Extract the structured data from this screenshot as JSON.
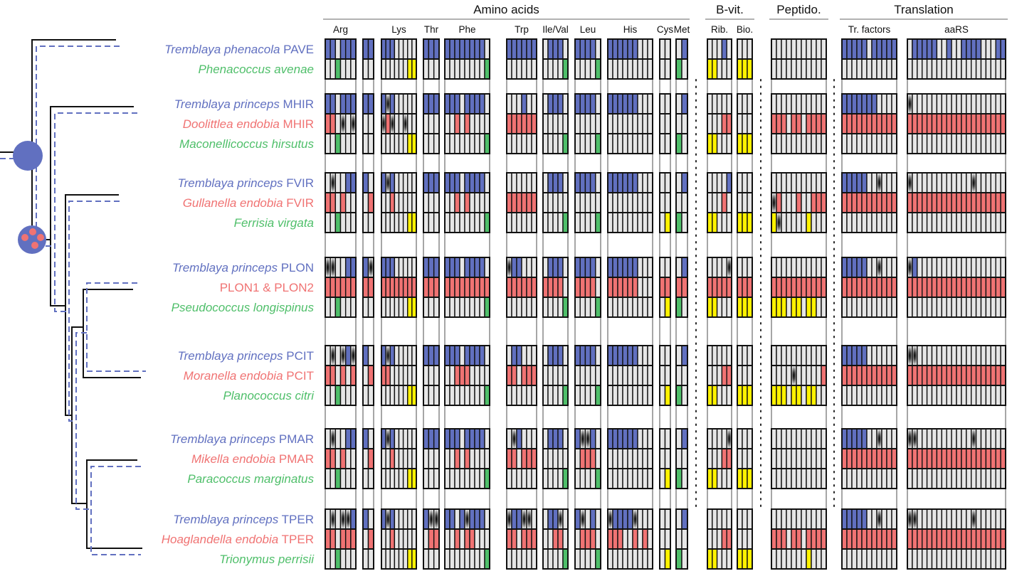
{
  "colors": {
    "tremblaya": "#6170c0",
    "endobia": "#f07373",
    "host": "#4fbf6a",
    "host_yellow": "#fff200",
    "absent": "#e6e6e6",
    "pseudogene": "#000000"
  },
  "legend_codes": {
    "b": "tremblaya gene",
    "r": "endobia gene",
    "g": "host gene",
    "y": "host gene (yellow)",
    ".": "absent",
    "x": "pseudogene"
  },
  "headers": [
    {
      "label": "Amino acids",
      "from": 0,
      "to": 10
    },
    {
      "label": "B-vit.",
      "from": 11,
      "to": 12
    },
    {
      "label": "Peptido.",
      "from": 13,
      "to": 13
    },
    {
      "label": "Translation",
      "from": 14,
      "to": 15
    }
  ],
  "gene_groups": [
    {
      "label": "Arg",
      "n": 6
    },
    {
      "label": "",
      "n": 2
    },
    {
      "label": "Lys",
      "n": 8
    },
    {
      "label": "Thr",
      "n": 3
    },
    {
      "label": "Phe",
      "n": 9
    },
    {
      "label": "Trp",
      "n": 6
    },
    {
      "label": "Ile/Val",
      "n": 5
    },
    {
      "label": "Leu",
      "n": 5
    },
    {
      "label": "His",
      "n": 9
    },
    {
      "label": "Cys",
      "n": 2
    },
    {
      "label": "Met",
      "n": 2
    },
    {
      "label": "Rib.",
      "n": 5
    },
    {
      "label": "Bio.",
      "n": 3
    },
    {
      "label": "",
      "n": 11
    },
    {
      "label": "Tr. factors",
      "n": 11
    },
    {
      "label": "aaRS",
      "n": 20
    }
  ],
  "clades": [
    {
      "rows": [
        {
          "name": "Tremblaya phenacola",
          "suffix": " PAVE",
          "type": "tremblaya",
          "cells": [
            "bb.bbb",
            "bb",
            "bbb.....",
            "bbb",
            "bbbbbbbb.",
            "bbbbbb",
            ".bbb.",
            "bbbb.",
            "bbbbbb...",
            "..",
            ".b",
            "...b.",
            "...",
            "...........",
            "bbbbb.bbbbb",
            ".bbbbb..b..bbbb...bb"
          ]
        },
        {
          "name": "Phenacoccus avenae",
          "suffix": "",
          "type": "host",
          "cells": [
            "..g...",
            "..",
            "......yy",
            "...",
            "........g",
            "......",
            "....g",
            "....g",
            ".........",
            "..",
            "g.",
            "yy...",
            "yyy",
            "...........",
            "...........",
            "...................."
          ]
        }
      ]
    },
    {
      "rows": [
        {
          "name": "Tremblaya princeps",
          "suffix": " MHIR",
          "type": "tremblaya",
          "cells": [
            "bb.bbb",
            "bb",
            "bxb.....",
            "bbb",
            "bbb.bbbb.",
            "...b..",
            ".bbb.",
            "bbbb.",
            "bbbbbb...",
            "..",
            ".b",
            ".....",
            "...",
            "...........",
            "bbbbbbb....",
            "x..................."
          ]
        },
        {
          "name": "Doolittlea endobia",
          "suffix": " MHIR",
          "type": "endobia",
          "cells": [
            "rr.x.x",
            "..",
            "xrx..x..",
            "...",
            "..r.r....",
            "rrrrrr",
            ".....",
            ".....",
            ".........",
            "..",
            "..",
            "...rr",
            "...",
            "rrr.rr.rrrr",
            "rrrrrrrrrrr",
            "rrrrrrrrrrrrrrrrrrrr"
          ]
        },
        {
          "name": "Maconellicoccus hirsutus",
          "suffix": "",
          "type": "host",
          "cells": [
            "..g...",
            "..",
            "......yy",
            "...",
            "........g",
            "......",
            "....g",
            "....g",
            ".........",
            "..",
            "g.",
            "yy...",
            "yyy",
            "...........",
            "...........",
            "...................."
          ]
        }
      ]
    },
    {
      "rows": [
        {
          "name": "Tremblaya princeps",
          "suffix": " FVIR",
          "type": "tremblaya",
          "cells": [
            ".x..bb",
            "b.",
            "bxb.....",
            "bbb",
            "bbb.bbbb.",
            "......",
            ".bbb.",
            "bbbb.",
            "bbbbbb...",
            "..",
            ".b",
            "....b",
            "...",
            "...........",
            "bbbbb..x...",
            "x............x......"
          ]
        },
        {
          "name": "Gullanella endobia",
          "suffix": " FVIR",
          "type": "endobia",
          "cells": [
            "rr.r..",
            ".r",
            "..r.....",
            "...",
            "..r.r....",
            "rrrrrr",
            ".....",
            ".....",
            ".........",
            "..",
            "..",
            "...r.",
            "...",
            "xr...r..rrr",
            "rrrrrrrrrrr",
            "rrrrrrrrrrrrrrrrrrrr"
          ]
        },
        {
          "name": "Ferrisia virgata",
          "suffix": "",
          "type": "host",
          "cells": [
            "..g...",
            "..",
            "......yy",
            "...",
            "........g",
            "......",
            "....g",
            "....g",
            ".........",
            ".y",
            "g.",
            "yy...",
            "yyy",
            "yx.....y...",
            "...........",
            "...................."
          ]
        }
      ]
    },
    {
      "rows": [
        {
          "name": "Tremblaya princeps",
          "suffix": " PLON",
          "type": "tremblaya",
          "cells": [
            "xx..bb",
            "bx",
            "bbb.....",
            "bbb",
            "bbb.bbbb.",
            "xbb...",
            ".bbb.",
            "bbbb.",
            "bbbbbb...",
            "..",
            ".b",
            "....x",
            "...",
            "...........",
            "bbbbb..x...",
            "xb.................."
          ]
        },
        {
          "name": "PLON1 & PLON2",
          "suffix": "",
          "type": "endobia",
          "plain": true,
          "cells": [
            "rrrrrr",
            "rr",
            "rrrrrrrr",
            "rrr",
            "rrrrrrrrr",
            "rrrrrr",
            "rrrr.",
            "rrrr.",
            "rrrrrr...",
            "rr",
            "rr",
            "rrrrr",
            "rrr",
            "rrrrrrrrrrr",
            "rrrrrrrrrrr",
            "rrrrrrrrrrrrrrrrrrrr"
          ]
        },
        {
          "name": "Pseudococcus longispinus",
          "suffix": "",
          "type": "host",
          "cells": [
            "..g...",
            "..",
            "......yy",
            "...",
            "........g",
            "......",
            "....g",
            "....g",
            ".........",
            ".y",
            "g.",
            "yy...",
            "yyy",
            "yyy.yy.yy..",
            "...........",
            "...................."
          ]
        }
      ]
    },
    {
      "rows": [
        {
          "name": "Tremblaya princeps",
          "suffix": " PCIT",
          "type": "tremblaya",
          "cells": [
            ".x.xbx",
            "b.",
            "bxb.....",
            "bbb",
            "bbb.bbbb.",
            ".bb...",
            ".bbb.",
            "bbbb.",
            "bbbbbb...",
            "..",
            ".b",
            ".....",
            "...",
            "...........",
            "bbbbb......",
            "xx.................."
          ]
        },
        {
          "name": "Moranella endobia",
          "suffix": " PCIT",
          "type": "endobia",
          "cells": [
            "rr.r.r",
            ".r",
            "rr......",
            "...",
            "..rrr....",
            "rr.rrr",
            ".....",
            ".....",
            ".........",
            "..",
            "..",
            "...rr",
            "...",
            "....x.....r",
            "rrrrrrrrrrr",
            "rrrrrrrrrrrrrrrrrrrr"
          ]
        },
        {
          "name": "Planococcus citri",
          "suffix": "",
          "type": "host",
          "cells": [
            "..g...",
            "..",
            "......yy",
            "...",
            "........g",
            "......",
            "....g",
            "....g",
            ".........",
            ".y",
            "g.",
            "yy...",
            "yyy",
            "yyy.yy.yy..",
            "...........",
            "...................."
          ]
        }
      ]
    },
    {
      "rows": [
        {
          "name": "Tremblaya princeps",
          "suffix": " PMAR",
          "type": "tremblaya",
          "cells": [
            ".x..bb",
            "b.",
            "bxb.....",
            "bbb",
            "bbb.bbbb.",
            ".xb...",
            ".bbb.",
            "bxxb.",
            "bbbbbb...",
            "..",
            ".b",
            "....x",
            "...",
            "...........",
            "bbbbb..x...",
            "xx...........x......"
          ]
        },
        {
          "name": "Mikella endobia",
          "suffix": " PMAR",
          "type": "endobia",
          "cells": [
            "rr.r..",
            ".r",
            "..r.....",
            "...",
            "..r.r....",
            "rr.rrr",
            ".....",
            ".rrr.",
            ".........",
            "..",
            "..",
            "...rr",
            "...",
            "...........",
            "rrrrrrrrrrr",
            "rrrrrrrrrrrrrrrrrrrr"
          ]
        },
        {
          "name": "Paracoccus marginatus",
          "suffix": "",
          "type": "host",
          "cells": [
            "..g...",
            "..",
            "......yy",
            "...",
            "........g",
            "......",
            "....g",
            "....g",
            ".........",
            ".y",
            "g.",
            "yy...",
            "yyy",
            "...........",
            "...........",
            "...................."
          ]
        }
      ]
    },
    {
      "rows": [
        {
          "name": "Tremblaya princeps",
          "suffix": " TPER",
          "type": "tremblaya",
          "cells": [
            ".x.xxb",
            "b.",
            "bxb.....",
            "bxx",
            "bb.bxbbb.",
            "xbbxx.",
            ".bbx.",
            "bx.b.",
            "xbbbbx...",
            "..",
            ".b",
            ".....",
            "...",
            "...........",
            "bbbbb..x...",
            "xx...........x......"
          ]
        },
        {
          "name": "Hoaglandella endobia",
          "suffix": " TPER",
          "type": "endobia",
          "cells": [
            "rr.rrr",
            ".r",
            "..r.....",
            ".rr",
            "..r.rr...",
            "rr.rrr",
            "..rr.",
            ".rrr.",
            "rrr..r.r.",
            "..",
            "..",
            "...rr",
            "...",
            "rrr.rr.rrrr",
            "rrrrrrrrrrr",
            "rrrrrrrrrrrrrrrrrrrr"
          ]
        },
        {
          "name": "Trionymus perrisii",
          "suffix": "",
          "type": "host",
          "cells": [
            "..g...",
            "..",
            "......yy",
            "...",
            "........g",
            "......",
            "....g",
            "....g",
            ".........",
            ".y",
            "g.",
            "yy...",
            "yyy",
            ".......y...",
            "...........",
            "...................."
          ]
        }
      ]
    }
  ]
}
